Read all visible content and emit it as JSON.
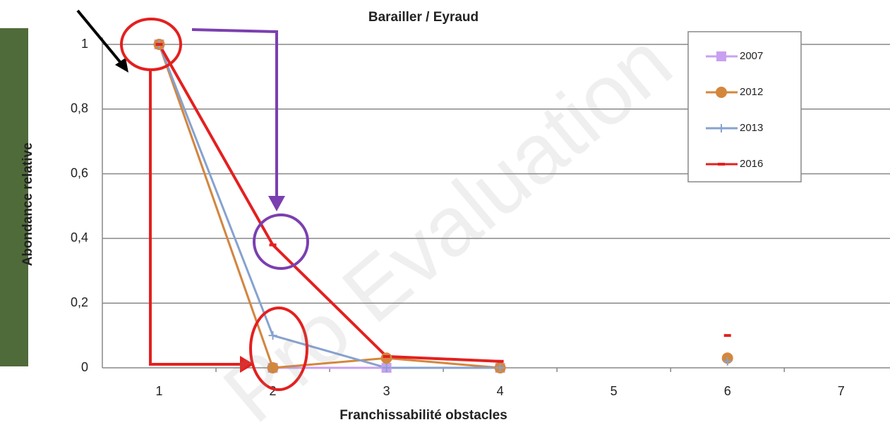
{
  "chart_data": {
    "type": "line",
    "title": "Barailler / Eyraud",
    "x_label": "Franchissabilité obstacles",
    "y_label": "Abondance relative",
    "x": [
      1,
      2,
      3,
      4,
      5,
      6,
      7
    ],
    "series": [
      {
        "name": "2007",
        "color": "#c9a0f0",
        "marker": "square",
        "values": [
          1,
          0,
          0,
          0,
          null,
          null,
          null
        ]
      },
      {
        "name": "2012",
        "color": "#d4873c",
        "marker": "circle",
        "values": [
          1,
          0,
          0.03,
          0,
          null,
          0.03,
          null
        ]
      },
      {
        "name": "2013",
        "color": "#86a2cf",
        "marker": "plus",
        "values": [
          1,
          0.1,
          0,
          0,
          null,
          0.02,
          null
        ]
      },
      {
        "name": "2016",
        "color": "#e3201f",
        "marker": "dash",
        "values": [
          1,
          0.38,
          0.035,
          0.02,
          null,
          0.1,
          null
        ]
      }
    ],
    "xlim": [
      0.5,
      7.43
    ],
    "xticks": [
      1,
      2,
      3,
      4,
      5,
      6,
      7
    ],
    "ylim": [
      0,
      1
    ],
    "yticks": [
      0,
      {
        "value": 0.2,
        "label": "0,2"
      },
      {
        "value": 0.4,
        "label": "0,4"
      },
      {
        "value": 0.6,
        "label": "0,6"
      },
      {
        "value": 0.8,
        "label": "0,8"
      },
      1
    ],
    "grid": true,
    "legend": "top right",
    "watermark": "Pro Evaluation"
  }
}
